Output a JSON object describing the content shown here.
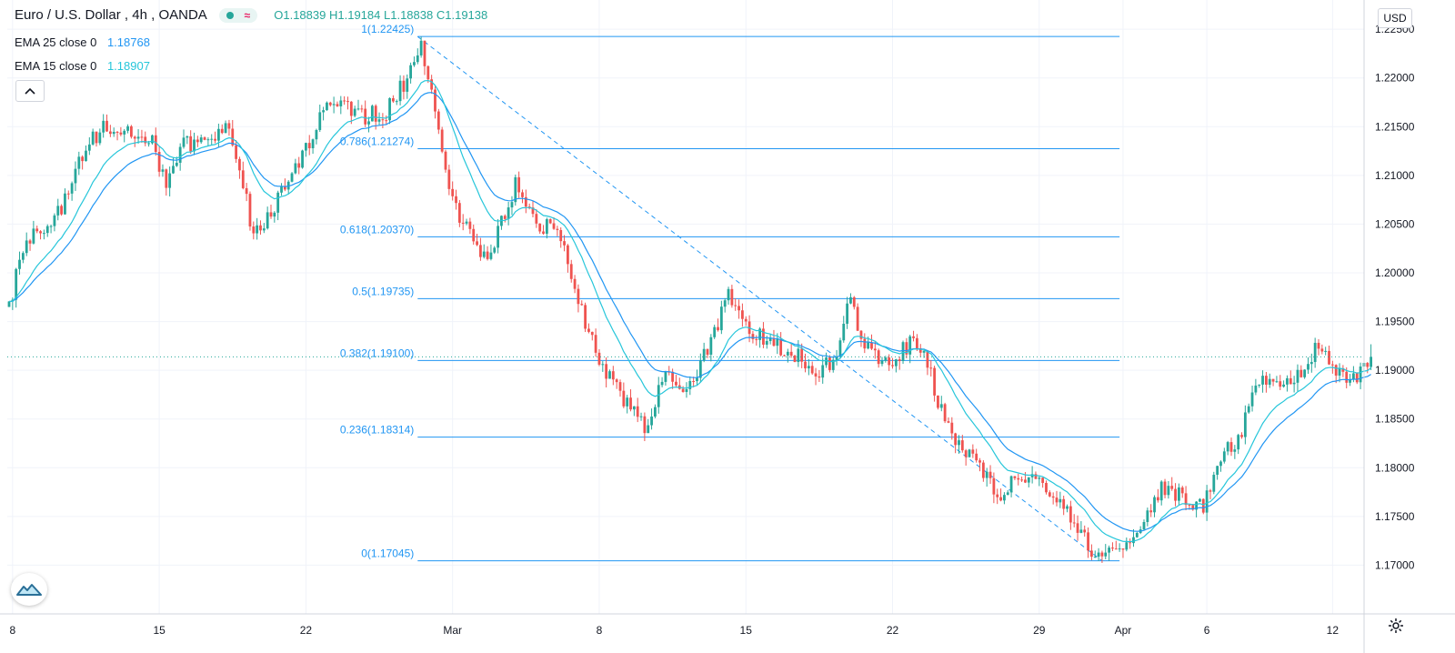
{
  "header": {
    "title": "Euro / U.S. Dollar",
    "interval": "4h",
    "broker": "OANDA",
    "ohlc": {
      "o_label": "O",
      "o": "1.18839",
      "h_label": "H",
      "h": "1.19184",
      "l_label": "L",
      "l": "1.18838",
      "c_label": "C",
      "c": "1.19138"
    }
  },
  "indicators": [
    {
      "label": "EMA 25 close 0",
      "value": "1.18768",
      "color": "#2196f3"
    },
    {
      "label": "EMA 15 close 0",
      "value": "1.18907",
      "color": "#26c6da"
    }
  ],
  "currency_button": "USD",
  "icons": {
    "collapse": "chevron-up-icon",
    "logo": "tradingview-logo-icon",
    "settings": "gear-icon",
    "status": "status-dot-icon",
    "wave": "wave-icon"
  },
  "colors": {
    "up": "#26a69a",
    "down": "#ef5350",
    "fib": "#2196f3",
    "ema25": "#2196f3",
    "ema15": "#26c6da",
    "grid": "#f0f3fa"
  },
  "chart_data": {
    "type": "candlestick",
    "title": "Euro / U.S. Dollar",
    "ylim": [
      1.165,
      1.228
    ],
    "y_ticks": [
      "1.17000",
      "1.17500",
      "1.18000",
      "1.18500",
      "1.19000",
      "1.19500",
      "1.20000",
      "1.20500",
      "1.21000",
      "1.21500",
      "1.22000",
      "1.22500"
    ],
    "x_ticks": [
      "8",
      "15",
      "22",
      "Mar",
      "8",
      "15",
      "22",
      "29",
      "Apr",
      "6",
      "12"
    ],
    "x_tick_bar_index": [
      1,
      43,
      85,
      127,
      169,
      211,
      253,
      295,
      319,
      343,
      379
    ],
    "bar_count": 391,
    "current_price": 1.19138,
    "fibonacci": [
      {
        "ratio": "1",
        "price": 1.22425,
        "label": "1(1.22425)"
      },
      {
        "ratio": "0.786",
        "price": 1.21274,
        "label": "0.786(1.21274)"
      },
      {
        "ratio": "0.618",
        "price": 1.2037,
        "label": "0.618(1.20370)"
      },
      {
        "ratio": "0.5",
        "price": 1.19735,
        "label": "0.5(1.19735)"
      },
      {
        "ratio": "0.382",
        "price": 1.191,
        "label": "0.382(1.19100)"
      },
      {
        "ratio": "0.236",
        "price": 1.18314,
        "label": "0.236(1.18314)"
      },
      {
        "ratio": "0",
        "price": 1.17045,
        "label": "0(1.17045)"
      }
    ],
    "fib_start_bar": 117,
    "fib_end_bar": 318,
    "trend_line": {
      "from_bar": 117,
      "from_price": 1.22425,
      "to_bar": 313,
      "to_price": 1.17045
    },
    "price_anchors": [
      [
        0,
        1.1965
      ],
      [
        3,
        1.201
      ],
      [
        7,
        1.204
      ],
      [
        12,
        1.2045
      ],
      [
        16,
        1.2075
      ],
      [
        22,
        1.213
      ],
      [
        27,
        1.215
      ],
      [
        35,
        1.2145
      ],
      [
        41,
        1.2135
      ],
      [
        45,
        1.209
      ],
      [
        50,
        1.213
      ],
      [
        58,
        1.214
      ],
      [
        62,
        1.2155
      ],
      [
        66,
        1.211
      ],
      [
        70,
        1.2035
      ],
      [
        75,
        1.206
      ],
      [
        82,
        1.211
      ],
      [
        86,
        1.2135
      ],
      [
        92,
        1.218
      ],
      [
        100,
        1.216
      ],
      [
        108,
        1.2165
      ],
      [
        114,
        1.22
      ],
      [
        118,
        1.2235
      ],
      [
        122,
        1.217
      ],
      [
        127,
        1.207
      ],
      [
        132,
        1.2045
      ],
      [
        137,
        1.201
      ],
      [
        145,
        1.209
      ],
      [
        152,
        1.205
      ],
      [
        158,
        1.204
      ],
      [
        164,
        1.196
      ],
      [
        170,
        1.1905
      ],
      [
        176,
        1.187
      ],
      [
        182,
        1.184
      ],
      [
        188,
        1.19
      ],
      [
        194,
        1.188
      ],
      [
        200,
        1.192
      ],
      [
        206,
        1.1975
      ],
      [
        212,
        1.194
      ],
      [
        218,
        1.193
      ],
      [
        226,
        1.1915
      ],
      [
        232,
        1.19
      ],
      [
        237,
        1.1915
      ],
      [
        240,
        1.1975
      ],
      [
        245,
        1.193
      ],
      [
        252,
        1.19
      ],
      [
        258,
        1.193
      ],
      [
        262,
        1.192
      ],
      [
        266,
        1.187
      ],
      [
        272,
        1.182
      ],
      [
        278,
        1.18
      ],
      [
        283,
        1.177
      ],
      [
        290,
        1.1795
      ],
      [
        298,
        1.1775
      ],
      [
        305,
        1.1745
      ],
      [
        311,
        1.171
      ],
      [
        316,
        1.171
      ],
      [
        320,
        1.172
      ],
      [
        324,
        1.1745
      ],
      [
        330,
        1.178
      ],
      [
        336,
        1.177
      ],
      [
        342,
        1.176
      ],
      [
        347,
        1.181
      ],
      [
        352,
        1.183
      ],
      [
        358,
        1.189
      ],
      [
        364,
        1.188
      ],
      [
        370,
        1.1895
      ],
      [
        374,
        1.192
      ],
      [
        378,
        1.191
      ],
      [
        382,
        1.189
      ],
      [
        386,
        1.189
      ],
      [
        390,
        1.1914
      ]
    ],
    "ema_periods": [
      25,
      15
    ]
  }
}
